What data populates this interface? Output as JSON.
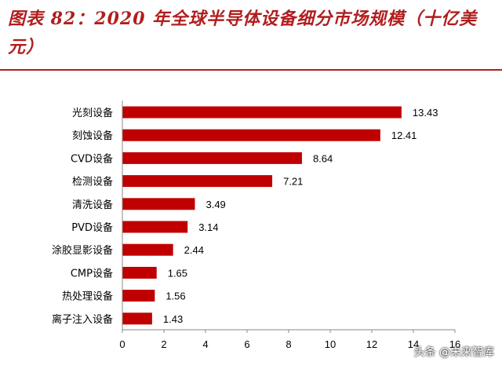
{
  "chart_data": {
    "type": "bar",
    "orientation": "horizontal",
    "title": "图表 82：2020 年全球半导体设备细分市场规模（十亿美元）",
    "categories": [
      "光刻设备",
      "刻蚀设备",
      "CVD设备",
      "检测设备",
      "清洗设备",
      "PVD设备",
      "涂胶显影设备",
      "CMP设备",
      "热处理设备",
      "离子注入设备"
    ],
    "values": [
      13.43,
      12.41,
      8.64,
      7.21,
      3.49,
      3.14,
      2.44,
      1.65,
      1.56,
      1.43
    ],
    "value_labels": [
      "13.43",
      "12.41",
      "8.64",
      "7.21",
      "3.49",
      "3.14",
      "2.44",
      "1.65",
      "1.56",
      "1.43"
    ],
    "xlim": [
      0,
      16
    ],
    "xticks": [
      0,
      2,
      4,
      6,
      8,
      10,
      12,
      14,
      16
    ],
    "xlabel": "",
    "ylabel": "",
    "bar_color": "#c00000",
    "grid": false
  },
  "watermark": "头条 @未来智库",
  "colors": {
    "title": "#b11e1e",
    "rule": "#b11e1e"
  }
}
